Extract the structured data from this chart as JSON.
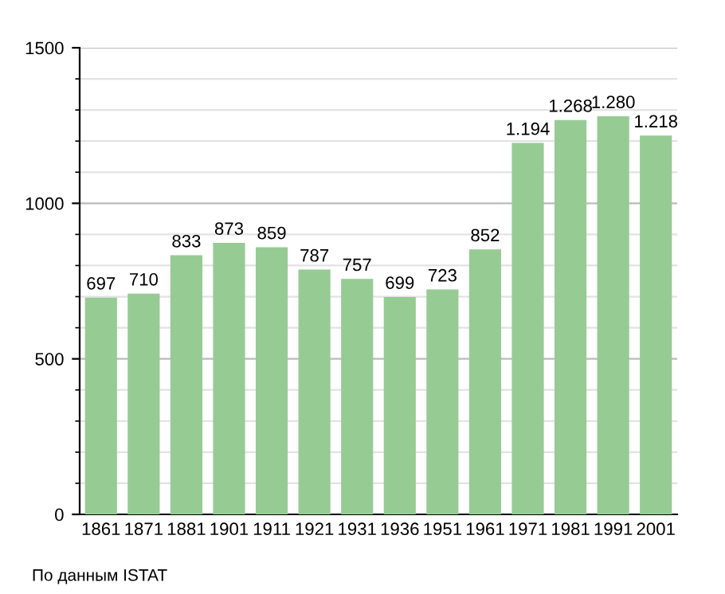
{
  "chart_data": {
    "type": "bar",
    "categories": [
      "1861",
      "1871",
      "1881",
      "1901",
      "1911",
      "1921",
      "1931",
      "1936",
      "1951",
      "1961",
      "1971",
      "1981",
      "1991",
      "2001"
    ],
    "values": [
      697,
      710,
      833,
      873,
      859,
      787,
      757,
      699,
      723,
      852,
      1194,
      1268,
      1280,
      1218
    ],
    "value_labels": [
      "697",
      "710",
      "833",
      "873",
      "859",
      "787",
      "757",
      "699",
      "723",
      "852",
      "1.194",
      "1.268",
      "1.280",
      "1.218"
    ],
    "color": "#97cb94",
    "ylim": [
      0,
      1500
    ],
    "yticks": [
      0,
      500,
      1000,
      1500
    ],
    "grid": "y",
    "annotations": [
      "По данным ISTAT"
    ]
  }
}
